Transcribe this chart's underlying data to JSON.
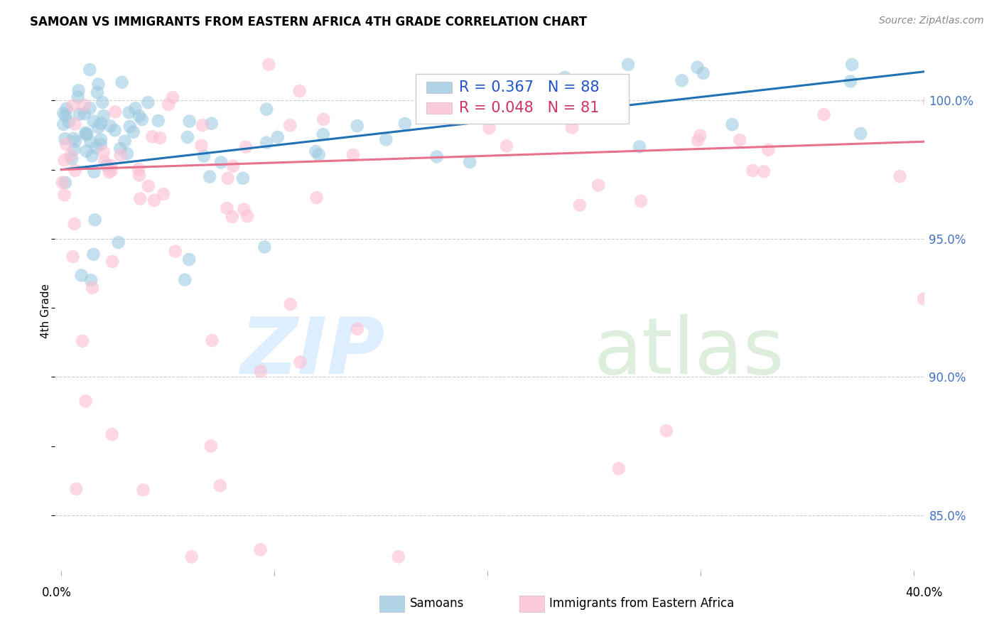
{
  "title": "SAMOAN VS IMMIGRANTS FROM EASTERN AFRICA 4TH GRADE CORRELATION CHART",
  "source": "Source: ZipAtlas.com",
  "ylabel": "4th Grade",
  "xlim": [
    -0.3,
    40.5
  ],
  "ylim": [
    83.0,
    101.8
  ],
  "yticks": [
    85.0,
    90.0,
    95.0,
    100.0
  ],
  "xticks": [
    0.0,
    10.0,
    20.0,
    30.0,
    40.0
  ],
  "xtick_labels": [
    "0.0%",
    "",
    "",
    "",
    "40.0%"
  ],
  "color_blue": "#9ecae1",
  "color_pink": "#fcbfd2",
  "line_blue": "#2171b5",
  "line_pink": "#e8718d",
  "title_fontsize": 12,
  "source_fontsize": 10,
  "ylabel_fontsize": 11,
  "tick_fontsize": 12,
  "legend_fontsize": 15,
  "watermark_color_zip": "#ddeeff",
  "watermark_color_atlas": "#ddeedd",
  "legend_blue_text_color": "#2255cc",
  "legend_pink_text_color": "#cc3366",
  "right_tick_color": "#4472C4",
  "n_samoans": 88,
  "n_immigrants": 81,
  "R_samoans": 0.367,
  "R_immigrants": 0.048
}
